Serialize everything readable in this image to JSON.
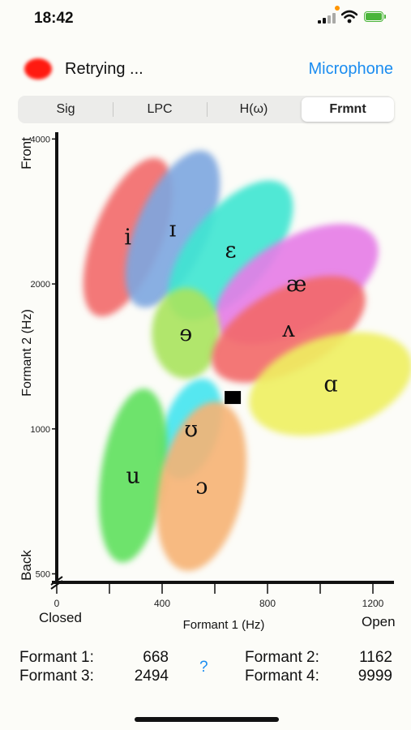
{
  "status_bar": {
    "time": "18:42",
    "battery_color": "#4ab53a",
    "dot_color": "#ff9500"
  },
  "header": {
    "status_text": "Retrying ...",
    "mic_label": "Microphone",
    "accent": "#1a8cf0"
  },
  "tabs": [
    {
      "label": "Sig",
      "active": false
    },
    {
      "label": "LPC",
      "active": false
    },
    {
      "label": "H(ω)",
      "active": false
    },
    {
      "label": "Frmnt",
      "active": true
    }
  ],
  "chart_data": {
    "type": "scatter",
    "title": "",
    "xlabel": "Formant 1 (Hz)",
    "ylabel": "Formant 2 (Hz)",
    "xlim": [
      0,
      1280
    ],
    "ylim": [
      480,
      4100
    ],
    "x_ticks": [
      0,
      400,
      800,
      1200
    ],
    "y_ticks": [
      500,
      1000,
      2000,
      4000
    ],
    "y_scale": "log",
    "x_end_labels": {
      "left": "Closed",
      "right": "Open"
    },
    "y_end_labels": {
      "top": "Front",
      "bottom": "Back"
    },
    "vowels": [
      {
        "symbol": "i",
        "f1": 270,
        "f2": 2500,
        "color": "#f26a6a"
      },
      {
        "symbol": "ɪ",
        "f1": 440,
        "f2": 2600,
        "color": "#7da6e0"
      },
      {
        "symbol": "ɛ",
        "f1": 660,
        "f2": 2350,
        "color": "#3ee6d1"
      },
      {
        "symbol": "æ",
        "f1": 910,
        "f2": 2000,
        "color": "#e57ce7"
      },
      {
        "symbol": "ɘ",
        "f1": 490,
        "f2": 1580,
        "color": "#a8e35c"
      },
      {
        "symbol": "ʌ",
        "f1": 880,
        "f2": 1610,
        "color": "#f26868"
      },
      {
        "symbol": "ɑ",
        "f1": 1040,
        "f2": 1240,
        "color": "#eef060"
      },
      {
        "symbol": "ʊ",
        "f1": 510,
        "f2": 1000,
        "color": "#44e4f0"
      },
      {
        "symbol": "u",
        "f1": 290,
        "f2": 800,
        "color": "#5ee05c"
      },
      {
        "symbol": "ɔ",
        "f1": 550,
        "f2": 760,
        "color": "#f6b273"
      }
    ],
    "current_point": {
      "f1": 668,
      "f2": 1162
    }
  },
  "readouts": {
    "f1_label": "Formant 1:",
    "f1_value": "668",
    "f2_label": "Formant 2:",
    "f2_value": "1162",
    "f3_label": "Formant 3:",
    "f3_value": "2494",
    "f4_label": "Formant 4:",
    "f4_value": "9999",
    "help_label": "?"
  }
}
